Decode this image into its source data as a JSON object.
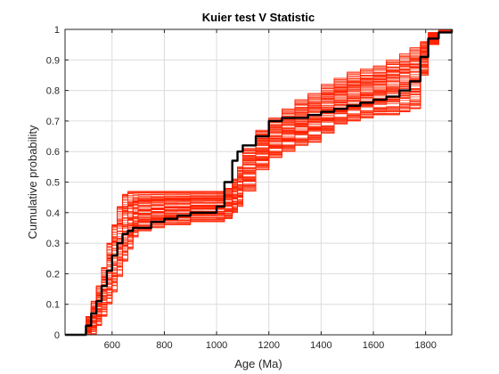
{
  "chart_data": {
    "type": "line",
    "title": "Kuier test V Statistic",
    "xlabel": "Age (Ma)",
    "ylabel": "Cumulative probability",
    "xlim": [
      420,
      1900
    ],
    "ylim": [
      0,
      1
    ],
    "x_ticks": [
      600,
      800,
      1000,
      1200,
      1400,
      1600,
      1800
    ],
    "y_ticks": [
      0,
      0.1,
      0.2,
      0.3,
      0.4,
      0.5,
      0.6,
      0.7,
      0.8,
      0.9,
      1
    ],
    "x_tick_labels": [
      "600",
      "800",
      "1000",
      "1200",
      "1400",
      "1600",
      "1800"
    ],
    "y_tick_labels": [
      "0",
      "0.1",
      "0.2",
      "0.3",
      "0.4",
      "0.5",
      "0.6",
      "0.7",
      "0.8",
      "0.9",
      "1"
    ],
    "grid": true,
    "colors": {
      "simulations": "#ff2200",
      "observed": "#000000"
    },
    "series": [
      {
        "role": "observed",
        "color": "#000000",
        "x": [
          420,
          480,
          500,
          520,
          540,
          560,
          580,
          600,
          620,
          640,
          660,
          680,
          700,
          750,
          800,
          850,
          900,
          950,
          1000,
          1030,
          1060,
          1080,
          1100,
          1150,
          1200,
          1250,
          1300,
          1350,
          1400,
          1450,
          1500,
          1550,
          1600,
          1650,
          1700,
          1740,
          1780,
          1810,
          1850,
          1900
        ],
        "y": [
          0,
          0,
          0.03,
          0.07,
          0.11,
          0.16,
          0.21,
          0.26,
          0.3,
          0.33,
          0.34,
          0.35,
          0.35,
          0.37,
          0.38,
          0.39,
          0.4,
          0.4,
          0.42,
          0.5,
          0.57,
          0.6,
          0.62,
          0.65,
          0.7,
          0.71,
          0.71,
          0.72,
          0.73,
          0.74,
          0.75,
          0.76,
          0.77,
          0.78,
          0.8,
          0.83,
          0.91,
          0.97,
          0.99,
          1
        ]
      },
      {
        "role": "simulated-envelope",
        "color": "#ff2200",
        "count": 100,
        "x": [
          420,
          480,
          500,
          520,
          540,
          560,
          580,
          600,
          620,
          640,
          660,
          680,
          700,
          750,
          800,
          850,
          900,
          950,
          1000,
          1030,
          1060,
          1080,
          1100,
          1150,
          1200,
          1250,
          1300,
          1350,
          1400,
          1450,
          1500,
          1550,
          1600,
          1650,
          1700,
          1740,
          1780,
          1810,
          1850,
          1900
        ],
        "y_low": [
          0,
          0,
          0,
          0,
          0.03,
          0.06,
          0.1,
          0.14,
          0.19,
          0.24,
          0.28,
          0.32,
          0.34,
          0.35,
          0.36,
          0.36,
          0.37,
          0.37,
          0.37,
          0.38,
          0.4,
          0.42,
          0.47,
          0.54,
          0.58,
          0.6,
          0.62,
          0.63,
          0.66,
          0.69,
          0.7,
          0.71,
          0.72,
          0.72,
          0.73,
          0.74,
          0.85,
          0.95,
          0.99,
          1
        ],
        "y_high": [
          0,
          0,
          0.06,
          0.11,
          0.16,
          0.22,
          0.3,
          0.36,
          0.42,
          0.46,
          0.47,
          0.47,
          0.47,
          0.47,
          0.47,
          0.47,
          0.47,
          0.47,
          0.47,
          0.48,
          0.51,
          0.55,
          0.61,
          0.67,
          0.71,
          0.74,
          0.77,
          0.79,
          0.82,
          0.84,
          0.86,
          0.87,
          0.88,
          0.9,
          0.92,
          0.94,
          0.96,
          0.99,
          1,
          1
        ]
      }
    ]
  }
}
